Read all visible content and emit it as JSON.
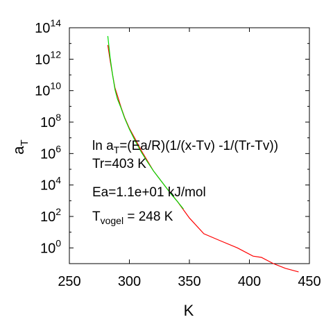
{
  "chart_data": {
    "type": "line",
    "xlabel": "K",
    "ylabel": "a",
    "ylabel_sub": "T",
    "xlim": [
      250,
      450
    ],
    "ylim": [
      0.1,
      100000000000000.0
    ],
    "yscale": "log",
    "grid": false,
    "x_ticks": [
      250,
      300,
      350,
      400,
      450
    ],
    "y_ticks": [
      {
        "value": 1,
        "base": "10",
        "exp": "0"
      },
      {
        "value": 100,
        "base": "10",
        "exp": "2"
      },
      {
        "value": 10000,
        "base": "10",
        "exp": "4"
      },
      {
        "value": 1000000,
        "base": "10",
        "exp": "6"
      },
      {
        "value": 100000000,
        "base": "10",
        "exp": "8"
      },
      {
        "value": 10000000000,
        "base": "10",
        "exp": "10"
      },
      {
        "value": 1000000000000,
        "base": "10",
        "exp": "12"
      },
      {
        "value": 100000000000000,
        "base": "10",
        "exp": "14"
      }
    ],
    "series": [
      {
        "color": "#ff0000",
        "x": [
          282,
          284,
          286,
          288,
          290,
          293,
          296,
          300,
          305,
          310,
          320,
          330,
          340,
          350,
          362,
          375,
          390,
          403,
          410,
          420,
          430,
          441
        ],
        "y": [
          8000000000000.0,
          800000000000.0,
          100000000000.0,
          15000000000.0,
          5000000000.0,
          900000000.0,
          200000000.0,
          40000000.0,
          8000000.0,
          1500000.0,
          80000.0,
          8000.0,
          900.0,
          80,
          8,
          3,
          1,
          0.3,
          0.25,
          0.1,
          0.05,
          0.03
        ]
      },
      {
        "color": "#00dd00",
        "x": [
          282,
          284,
          286,
          288,
          290,
          293,
          296,
          300,
          305,
          310,
          315,
          320,
          325,
          330,
          335,
          340,
          345
        ],
        "y": [
          30000000000000.0,
          1200000000000.0,
          100000000000.0,
          12000000000.0,
          3000000000.0,
          800000000.0,
          180000000.0,
          35000000.0,
          6000000.0,
          1200000.0,
          300000.0,
          80000.0,
          25000.0,
          8000.0,
          2500.0,
          900.0,
          300.0
        ]
      }
    ],
    "annotations": [
      {
        "key": "formula",
        "parts": [
          "ln a",
          "T",
          "=(Ea/R)(1/(x-Tv) -1/(Tr-Tv))"
        ]
      },
      {
        "key": "tr",
        "parts": [
          "Tr=403 K"
        ]
      },
      {
        "key": "ea",
        "parts": [
          "Ea=1.1e+01 kJ/mol"
        ]
      },
      {
        "key": "tvogel",
        "parts": [
          "T",
          "vogel",
          " = 248 K"
        ]
      }
    ]
  }
}
